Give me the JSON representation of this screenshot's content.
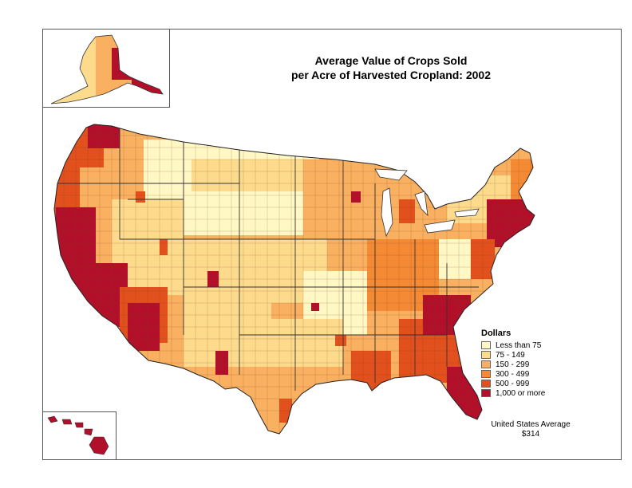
{
  "title": {
    "line1": "Average Value of Crops Sold",
    "line2": "per Acre of Harvested Cropland:  2002"
  },
  "legend": {
    "title": "Dollars",
    "items": [
      {
        "label": "Less than 75",
        "color": "#fff7c4"
      },
      {
        "label": "75 - 149",
        "color": "#fddb8c"
      },
      {
        "label": "150 - 299",
        "color": "#f9b060"
      },
      {
        "label": "300 - 499",
        "color": "#f58a35"
      },
      {
        "label": "500 - 999",
        "color": "#e2501e"
      },
      {
        "label": "1,000 or more",
        "color": "#b2102a"
      }
    ]
  },
  "average": {
    "line1": "United States Average",
    "line2": "$314"
  }
}
